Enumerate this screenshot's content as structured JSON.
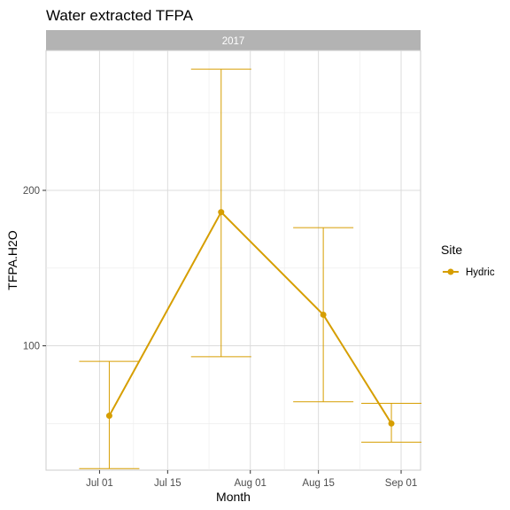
{
  "chart_data": {
    "type": "line",
    "title": "Water extracted TFPA",
    "facet": "2017",
    "xlabel": "Month",
    "ylabel": "TFPA.H2O",
    "x_ticks": [
      "Jul 01",
      "Jul 15",
      "Aug 01",
      "Aug 15",
      "Sep 01"
    ],
    "x_tick_dates": [
      "2017-07-01",
      "2017-07-15",
      "2017-08-01",
      "2017-08-15",
      "2017-09-01"
    ],
    "xlim": [
      "2017-06-20",
      "2017-09-05"
    ],
    "y_ticks": [
      100,
      200
    ],
    "ylim": [
      20,
      290
    ],
    "grid": true,
    "legend": {
      "title": "Site",
      "position": "right",
      "entries": [
        "Hydric"
      ]
    },
    "series": [
      {
        "name": "Hydric",
        "color": "#D69E00",
        "points": [
          {
            "x": "2017-07-03",
            "y": 55,
            "ymin": 21,
            "ymax": 90
          },
          {
            "x": "2017-07-26",
            "y": 186,
            "ymin": 93,
            "ymax": 278
          },
          {
            "x": "2017-08-16",
            "y": 120,
            "ymin": 64,
            "ymax": 176
          },
          {
            "x": "2017-08-30",
            "y": 50,
            "ymin": 38,
            "ymax": 63
          }
        ]
      }
    ]
  }
}
